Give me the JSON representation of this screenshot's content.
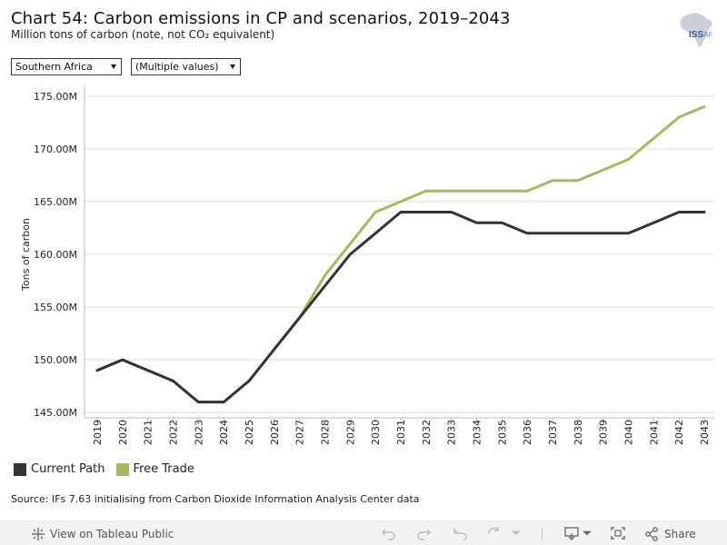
{
  "header": {
    "title": "Chart 54: Carbon emissions in CP and scenarios, 2019–2043",
    "subtitle": "Million tons of carbon (note, not CO₂ equivalent)"
  },
  "logo": {
    "main": "ISS",
    "suffix": "AF"
  },
  "filters": {
    "region": "Southern Africa",
    "scenarios": "(Multiple values)"
  },
  "colors": {
    "current_path": "#333333",
    "free_trade": "#a6b95c",
    "grid": "#dcdcdc",
    "axis": "#999999"
  },
  "chart_data": {
    "type": "line",
    "title": "Chart 54: Carbon emissions in CP and scenarios, 2019–2043",
    "ylabel": "Tons of carbon",
    "xlabel": "",
    "ylim": [
      144.5,
      175.5
    ],
    "yticks": [
      145,
      150,
      155,
      160,
      165,
      170,
      175
    ],
    "ytick_labels": [
      "145.00M",
      "150.00M",
      "155.00M",
      "160.00M",
      "165.00M",
      "170.00M",
      "175.00M"
    ],
    "x": [
      "2019",
      "2020",
      "2021",
      "2022",
      "2023",
      "2024",
      "2025",
      "2026",
      "2027",
      "2028",
      "2029",
      "2030",
      "2031",
      "2032",
      "2033",
      "2034",
      "2035",
      "2036",
      "2037",
      "2038",
      "2039",
      "2040",
      "2041",
      "2042",
      "2043"
    ],
    "series": [
      {
        "name": "Current Path",
        "color": "#333333",
        "values": [
          149,
          150,
          149,
          148,
          146,
          146,
          148,
          151,
          154,
          157,
          160,
          162,
          164,
          164,
          164,
          163,
          163,
          162,
          162,
          162,
          162,
          162,
          163,
          164,
          164
        ]
      },
      {
        "name": "Free Trade",
        "color": "#a6b95c",
        "values": [
          149,
          150,
          149,
          148,
          146,
          146,
          148,
          151,
          154,
          158,
          161,
          164,
          165,
          166,
          166,
          166,
          166,
          166,
          167,
          167,
          168,
          169,
          171,
          173,
          174
        ]
      }
    ],
    "legend_position": "bottom-left",
    "grid": true
  },
  "source": "Source: IFs 7.63 initialising from Carbon Dioxide Information Analysis Center data",
  "toolbar": {
    "view_label": "View on Tableau Public",
    "share_label": "Share"
  }
}
